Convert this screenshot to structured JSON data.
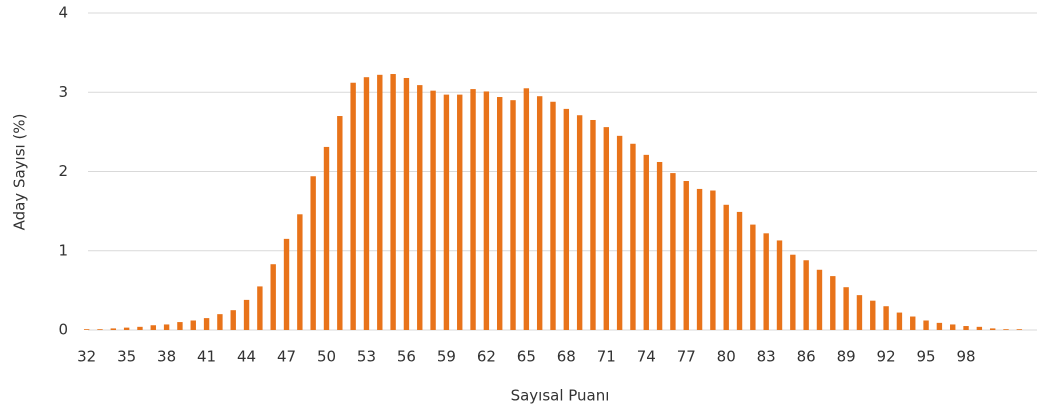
{
  "chart_data": {
    "type": "bar",
    "x_label": "Sayısal Puanı",
    "y_label": "Aday Sayısı (%)",
    "categories": [
      "32",
      null,
      null,
      "35",
      null,
      null,
      "38",
      null,
      null,
      "41",
      null,
      null,
      "44",
      null,
      null,
      "47",
      null,
      null,
      "50",
      null,
      null,
      "53",
      null,
      null,
      "56",
      null,
      null,
      "59",
      null,
      null,
      "62",
      null,
      null,
      "65",
      null,
      null,
      "68",
      null,
      null,
      "71",
      null,
      null,
      "74",
      null,
      null,
      "77",
      null,
      null,
      "80",
      null,
      null,
      "83",
      null,
      null,
      "86",
      null,
      null,
      "89",
      null,
      null,
      "92",
      null,
      null,
      "95",
      null,
      null,
      "98",
      null,
      null,
      null,
      null
    ],
    "values": [
      0.01,
      0.01,
      0.02,
      0.03,
      0.04,
      0.06,
      0.07,
      0.1,
      0.12,
      0.15,
      0.2,
      0.25,
      0.38,
      0.55,
      0.83,
      1.15,
      1.46,
      1.94,
      2.31,
      2.7,
      3.12,
      3.19,
      3.22,
      3.23,
      3.18,
      3.09,
      3.02,
      2.97,
      2.97,
      3.04,
      3.01,
      2.94,
      2.9,
      3.05,
      2.95,
      2.88,
      2.79,
      2.71,
      2.65,
      2.56,
      2.45,
      2.35,
      2.21,
      2.12,
      1.98,
      1.88,
      1.78,
      1.76,
      1.58,
      1.49,
      1.33,
      1.22,
      1.13,
      0.95,
      0.88,
      0.76,
      0.68,
      0.54,
      0.44,
      0.37,
      0.3,
      0.22,
      0.17,
      0.12,
      0.09,
      0.07,
      0.05,
      0.04,
      0.02,
      0.01,
      0.01
    ],
    "color": "#e8731a",
    "ylim": [
      0,
      4
    ],
    "yticks": [
      0,
      1,
      2,
      3,
      4
    ],
    "grid": true
  }
}
